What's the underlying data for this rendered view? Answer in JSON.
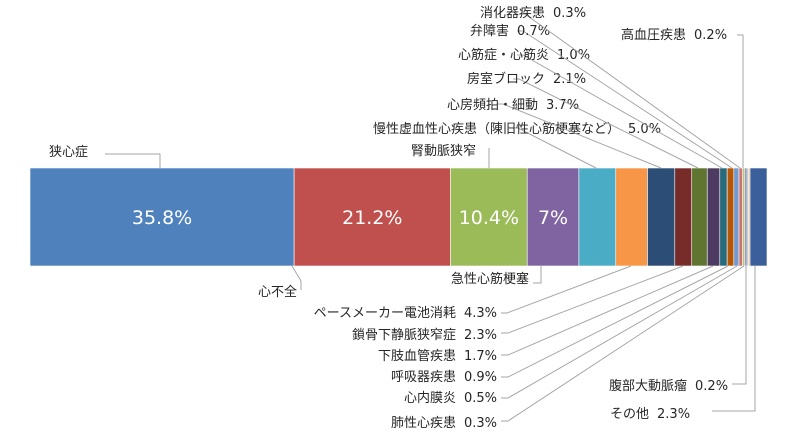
{
  "chart_data": {
    "type": "bar",
    "orientation": "horizontal",
    "stacked": true,
    "value_unit": "%",
    "legend": "none",
    "grid": false,
    "series": [
      {
        "name": "狭心症",
        "value": 35.8,
        "color": "#4F81BD",
        "inside_label": "35.8%"
      },
      {
        "name": "心不全",
        "value": 21.2,
        "color": "#C0504D",
        "inside_label": "21.2%"
      },
      {
        "name": "腎動脈狭窄",
        "value": 10.4,
        "color": "#9BBB59",
        "inside_label": "10.4%"
      },
      {
        "name": "急性心筋梗塞",
        "value": 7.0,
        "color": "#8064A2",
        "inside_label": "7%"
      },
      {
        "name": "慢性虚血性心疾患（陳旧性心筋梗塞など）",
        "value": 5.0,
        "color": "#4BACC6",
        "label": "慢性虚血性心疾患（陳旧性心筋梗塞など）",
        "value_text": "5.0%"
      },
      {
        "name": "ペースメーカー電池消耗",
        "value": 4.3,
        "color": "#F79646",
        "label": "ペースメーカー電池消耗",
        "value_text": "4.3%"
      },
      {
        "name": "心房頻拍・細動",
        "value": 3.7,
        "color": "#2C4D75",
        "label": "心房頻拍・細動",
        "value_text": "3.7%"
      },
      {
        "name": "鎖骨下静脈狭窄症",
        "value": 2.3,
        "color": "#772C2A",
        "label": "鎖骨下静脈狭窄症",
        "value_text": "2.3%"
      },
      {
        "name": "房室ブロック",
        "value": 2.1,
        "color": "#5F7530",
        "label": "房室ブロック",
        "value_text": "2.1%"
      },
      {
        "name": "下肢血管疾患",
        "value": 1.7,
        "color": "#4D3B62",
        "label": "下肢血管疾患",
        "value_text": "1.7%"
      },
      {
        "name": "心筋症・心筋炎",
        "value": 1.0,
        "color": "#276A7C",
        "label": "心筋症・心筋炎",
        "value_text": "1.0%"
      },
      {
        "name": "呼吸器疾患",
        "value": 0.9,
        "color": "#B65708",
        "label": "呼吸器疾患",
        "value_text": "0.9%"
      },
      {
        "name": "弁障害",
        "value": 0.7,
        "color": "#729ACA",
        "label": "弁障害",
        "value_text": "0.7%"
      },
      {
        "name": "心内膜炎",
        "value": 0.5,
        "color": "#CD7371",
        "label": "心内膜炎",
        "value_text": "0.5%"
      },
      {
        "name": "消化器疾患",
        "value": 0.3,
        "color": "#AFC97A",
        "label": "消化器疾患",
        "value_text": "0.3%"
      },
      {
        "name": "肺性心疾患",
        "value": 0.3,
        "color": "#9983B5",
        "label": "肺性心疾患",
        "value_text": "0.3%"
      },
      {
        "name": "高血圧疾患",
        "value": 0.2,
        "color": "#6FBDD1",
        "label": "高血圧疾患",
        "value_text": "0.2%"
      },
      {
        "name": "腹部大動脈瘤",
        "value": 0.2,
        "color": "#F9AB6B",
        "label": "腹部大動脈瘤",
        "value_text": "0.2%"
      },
      {
        "name": "その他",
        "value": 2.3,
        "color": "#3A5F9A",
        "label": "その他",
        "value_text": "2.3%"
      }
    ]
  }
}
